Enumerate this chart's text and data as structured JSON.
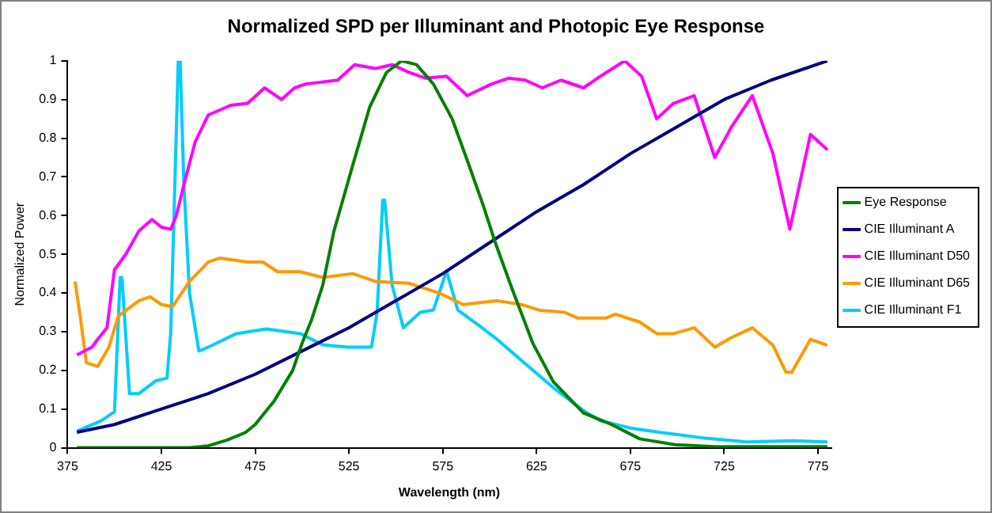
{
  "chart_data": {
    "type": "line",
    "title": "Normalized SPD per Illuminant and Photopic Eye Response",
    "xlabel": "Wavelength (nm)",
    "ylabel": "Normalized Power",
    "xlim": [
      375,
      782
    ],
    "xticks": [
      375,
      425,
      475,
      525,
      575,
      625,
      675,
      725,
      775
    ],
    "ylim": [
      0,
      1
    ],
    "yticks": [
      0,
      0.1,
      0.2,
      0.3,
      0.4,
      0.5,
      0.6,
      0.7,
      0.8,
      0.9,
      1
    ],
    "grid": false,
    "legend": "right",
    "marker": "none",
    "line_style": "solid",
    "series": [
      {
        "name": "Eye Response",
        "color": "#008000",
        "x": [
          380,
          440,
          450,
          460,
          470,
          475,
          480,
          485,
          490,
          495,
          500,
          505,
          511,
          517,
          527,
          536,
          545,
          553,
          561,
          570,
          580,
          589,
          597,
          603,
          612,
          623,
          634,
          650,
          665,
          680,
          699,
          720,
          780
        ],
        "values": [
          0,
          0,
          0.005,
          0.02,
          0.04,
          0.06,
          0.09,
          0.12,
          0.16,
          0.2,
          0.27,
          0.33,
          0.42,
          0.56,
          0.73,
          0.88,
          0.97,
          1,
          0.99,
          0.94,
          0.85,
          0.73,
          0.62,
          0.53,
          0.41,
          0.27,
          0.17,
          0.09,
          0.06,
          0.023,
          0.008,
          0.003,
          0.003
        ]
      },
      {
        "name": "CIE Illuminant A",
        "color": "#000080",
        "x": [
          380,
          400,
          425,
          450,
          475,
          500,
          525,
          550,
          575,
          600,
          625,
          650,
          675,
          700,
          725,
          750,
          780
        ],
        "values": [
          0.04,
          0.06,
          0.1,
          0.14,
          0.19,
          0.25,
          0.31,
          0.38,
          0.45,
          0.53,
          0.61,
          0.68,
          0.76,
          0.83,
          0.9,
          0.95,
          1
        ]
      },
      {
        "name": "CIE Illuminant D50",
        "color": "#ff00ff",
        "x": [
          380,
          388,
          391,
          396,
          400,
          406,
          413,
          420,
          425,
          430,
          433,
          437,
          443,
          450,
          462,
          471,
          480,
          489,
          496,
          502,
          519,
          528,
          539,
          548,
          557,
          566,
          577,
          588,
          601,
          610,
          619,
          628,
          638,
          650,
          659,
          672,
          681,
          689,
          698,
          709,
          720,
          729,
          740,
          751,
          760,
          771,
          780
        ],
        "values": [
          0.24,
          0.26,
          0.28,
          0.31,
          0.46,
          0.5,
          0.56,
          0.59,
          0.57,
          0.565,
          0.6,
          0.68,
          0.79,
          0.86,
          0.885,
          0.89,
          0.93,
          0.9,
          0.93,
          0.94,
          0.95,
          0.99,
          0.98,
          0.99,
          0.97,
          0.955,
          0.96,
          0.91,
          0.94,
          0.955,
          0.95,
          0.93,
          0.95,
          0.93,
          0.96,
          1,
          0.96,
          0.85,
          0.89,
          0.91,
          0.75,
          0.83,
          0.91,
          0.76,
          0.565,
          0.81,
          0.77
        ]
      },
      {
        "name": "CIE Illuminant D65",
        "color": "#ff9900",
        "x": [
          379,
          382,
          385,
          391,
          397,
          402,
          413,
          419,
          425,
          431,
          440,
          450,
          456,
          471,
          479,
          487,
          499,
          511,
          527,
          539,
          557,
          573,
          586,
          604,
          617,
          627,
          640,
          647,
          662,
          667,
          680,
          689,
          698,
          709,
          720,
          729,
          740,
          751,
          758,
          761,
          771,
          780
        ],
        "values": [
          0.43,
          0.33,
          0.22,
          0.21,
          0.26,
          0.34,
          0.38,
          0.39,
          0.37,
          0.365,
          0.43,
          0.48,
          0.49,
          0.48,
          0.48,
          0.455,
          0.455,
          0.44,
          0.45,
          0.43,
          0.425,
          0.4,
          0.37,
          0.38,
          0.37,
          0.355,
          0.35,
          0.335,
          0.335,
          0.345,
          0.325,
          0.295,
          0.295,
          0.31,
          0.26,
          0.285,
          0.31,
          0.265,
          0.195,
          0.195,
          0.28,
          0.265
        ]
      },
      {
        "name": "CIE Illuminant F1",
        "color": "#00ccff",
        "x": [
          380,
          393,
          400,
          403,
          404,
          408,
          413,
          422,
          428,
          430,
          434,
          435,
          437,
          440,
          445,
          450,
          465,
          481,
          499,
          511,
          524,
          537,
          540,
          543,
          544,
          548,
          554,
          563,
          570,
          577,
          583,
          594,
          604,
          619,
          634,
          650,
          659,
          675,
          692,
          713,
          737,
          762,
          780
        ],
        "values": [
          0.043,
          0.07,
          0.093,
          0.44,
          0.44,
          0.14,
          0.14,
          0.173,
          0.18,
          0.3,
          1,
          1,
          0.68,
          0.4,
          0.25,
          0.26,
          0.295,
          0.307,
          0.295,
          0.266,
          0.26,
          0.26,
          0.35,
          0.64,
          0.64,
          0.42,
          0.31,
          0.35,
          0.356,
          0.457,
          0.356,
          0.317,
          0.28,
          0.217,
          0.155,
          0.096,
          0.07,
          0.051,
          0.039,
          0.026,
          0.015,
          0.018,
          0.015
        ]
      }
    ]
  }
}
